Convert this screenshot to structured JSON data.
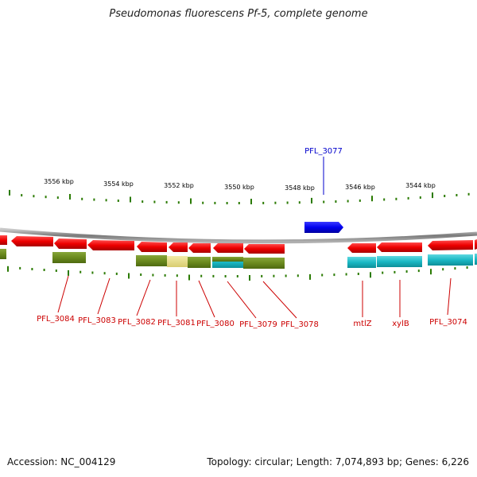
{
  "title": "Pseudomonas fluorescens Pf-5, complete genome",
  "footer": {
    "accession": "Accession: NC_004129",
    "summary": "Topology: circular; Length: 7,074,893 bp; Genes: 6,226"
  },
  "colors": {
    "forward_gene": "#0000ee",
    "reverse_gene": "#ee0000",
    "label_red": "#cc0000",
    "label_blue": "#0000cc",
    "tick": "#2a7a00",
    "backbone": "#8a8a8a",
    "cog_olive": "#6b8a1e",
    "cog_cyan": "#1ab8c4",
    "cog_khaki": "#e6db8a"
  },
  "scale": {
    "labels": [
      "3556 kbp",
      "3554 kbp",
      "3552 kbp",
      "3550 kbp",
      "3548 kbp",
      "3546 kbp",
      "3544 kbp"
    ]
  },
  "genes_reverse": [
    "PFL_3084",
    "PFL_3083",
    "PFL_3082",
    "PFL_3081",
    "PFL_3080",
    "PFL_3079",
    "PFL_3078",
    "mtlZ",
    "xylB",
    "PFL_3074"
  ],
  "genes_forward": [
    "PFL_3077"
  ]
}
